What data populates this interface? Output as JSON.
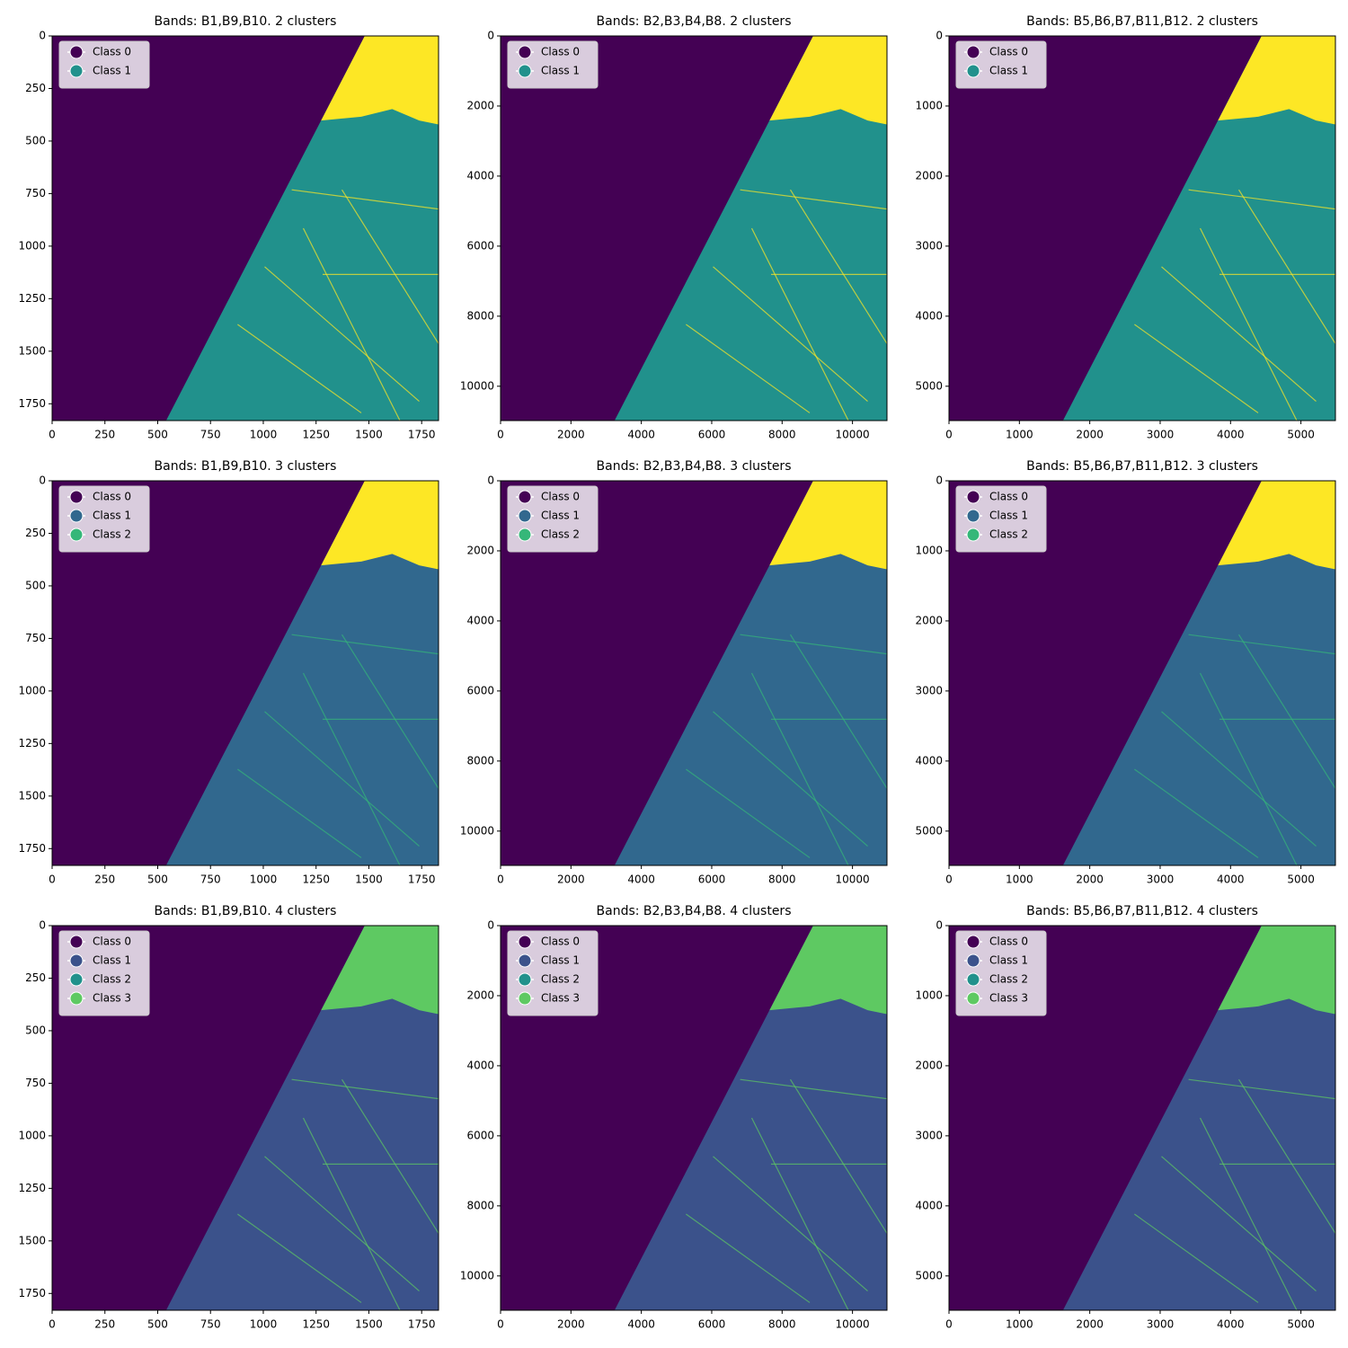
{
  "chart_data": [
    {
      "type": "image",
      "title": "Bands: B1,B9,B10. 2 clusters",
      "xlim": [
        0,
        1830
      ],
      "ylim": [
        1830,
        0
      ],
      "xticks": [
        0,
        250,
        500,
        750,
        1000,
        1250,
        1500,
        1750
      ],
      "yticks": [
        0,
        250,
        500,
        750,
        1000,
        1250,
        1500,
        1750
      ],
      "legend": "upper left",
      "series": [
        {
          "name": "Class 0",
          "color": "#440154"
        },
        {
          "name": "Class 1",
          "color": "#21918c"
        }
      ]
    },
    {
      "type": "image",
      "title": "Bands: B2,B3,B4,B8. 2 clusters",
      "xlim": [
        0,
        10980
      ],
      "ylim": [
        10980,
        0
      ],
      "xticks": [
        0,
        2000,
        4000,
        6000,
        8000,
        10000
      ],
      "yticks": [
        0,
        2000,
        4000,
        6000,
        8000,
        10000
      ],
      "legend": "upper left",
      "series": [
        {
          "name": "Class 0",
          "color": "#440154"
        },
        {
          "name": "Class 1",
          "color": "#21918c"
        }
      ]
    },
    {
      "type": "image",
      "title": "Bands: B5,B6,B7,B11,B12. 2 clusters",
      "xlim": [
        0,
        5490
      ],
      "ylim": [
        5490,
        0
      ],
      "xticks": [
        0,
        1000,
        2000,
        3000,
        4000,
        5000
      ],
      "yticks": [
        0,
        1000,
        2000,
        3000,
        4000,
        5000
      ],
      "legend": "upper left",
      "series": [
        {
          "name": "Class 0",
          "color": "#440154"
        },
        {
          "name": "Class 1",
          "color": "#21918c"
        }
      ]
    },
    {
      "type": "image",
      "title": "Bands: B1,B9,B10. 3 clusters",
      "xlim": [
        0,
        1830
      ],
      "ylim": [
        1830,
        0
      ],
      "xticks": [
        0,
        250,
        500,
        750,
        1000,
        1250,
        1500,
        1750
      ],
      "yticks": [
        0,
        250,
        500,
        750,
        1000,
        1250,
        1500,
        1750
      ],
      "legend": "upper left",
      "series": [
        {
          "name": "Class 0",
          "color": "#440154"
        },
        {
          "name": "Class 1",
          "color": "#31688e"
        },
        {
          "name": "Class 2",
          "color": "#35b779"
        }
      ]
    },
    {
      "type": "image",
      "title": "Bands: B2,B3,B4,B8. 3 clusters",
      "xlim": [
        0,
        10980
      ],
      "ylim": [
        10980,
        0
      ],
      "xticks": [
        0,
        2000,
        4000,
        6000,
        8000,
        10000
      ],
      "yticks": [
        0,
        2000,
        4000,
        6000,
        8000,
        10000
      ],
      "legend": "upper left",
      "series": [
        {
          "name": "Class 0",
          "color": "#440154"
        },
        {
          "name": "Class 1",
          "color": "#31688e"
        },
        {
          "name": "Class 2",
          "color": "#35b779"
        }
      ]
    },
    {
      "type": "image",
      "title": "Bands: B5,B6,B7,B11,B12. 3 clusters",
      "xlim": [
        0,
        5490
      ],
      "ylim": [
        5490,
        0
      ],
      "xticks": [
        0,
        1000,
        2000,
        3000,
        4000,
        5000
      ],
      "yticks": [
        0,
        1000,
        2000,
        3000,
        4000,
        5000
      ],
      "legend": "upper left",
      "series": [
        {
          "name": "Class 0",
          "color": "#440154"
        },
        {
          "name": "Class 1",
          "color": "#31688e"
        },
        {
          "name": "Class 2",
          "color": "#35b779"
        }
      ]
    },
    {
      "type": "image",
      "title": "Bands: B1,B9,B10. 4 clusters",
      "xlim": [
        0,
        1830
      ],
      "ylim": [
        1830,
        0
      ],
      "xticks": [
        0,
        250,
        500,
        750,
        1000,
        1250,
        1500,
        1750
      ],
      "yticks": [
        0,
        250,
        500,
        750,
        1000,
        1250,
        1500,
        1750
      ],
      "legend": "upper left",
      "series": [
        {
          "name": "Class 0",
          "color": "#440154"
        },
        {
          "name": "Class 1",
          "color": "#3b528b"
        },
        {
          "name": "Class 2",
          "color": "#21918c"
        },
        {
          "name": "Class 3",
          "color": "#5ec962"
        }
      ]
    },
    {
      "type": "image",
      "title": "Bands: B2,B3,B4,B8. 4 clusters",
      "xlim": [
        0,
        10980
      ],
      "ylim": [
        10980,
        0
      ],
      "xticks": [
        0,
        2000,
        4000,
        6000,
        8000,
        10000
      ],
      "yticks": [
        0,
        2000,
        4000,
        6000,
        8000,
        10000
      ],
      "legend": "upper left",
      "series": [
        {
          "name": "Class 0",
          "color": "#440154"
        },
        {
          "name": "Class 1",
          "color": "#3b528b"
        },
        {
          "name": "Class 2",
          "color": "#21918c"
        },
        {
          "name": "Class 3",
          "color": "#5ec962"
        }
      ]
    },
    {
      "type": "image",
      "title": "Bands: B5,B6,B7,B11,B12. 4 clusters",
      "xlim": [
        0,
        5490
      ],
      "ylim": [
        5490,
        0
      ],
      "xticks": [
        0,
        1000,
        2000,
        3000,
        4000,
        5000
      ],
      "yticks": [
        0,
        1000,
        2000,
        3000,
        4000,
        5000
      ],
      "legend": "upper left",
      "series": [
        {
          "name": "Class 0",
          "color": "#440154"
        },
        {
          "name": "Class 1",
          "color": "#3b528b"
        },
        {
          "name": "Class 2",
          "color": "#21918c"
        },
        {
          "name": "Class 3",
          "color": "#5ec962"
        }
      ]
    }
  ]
}
